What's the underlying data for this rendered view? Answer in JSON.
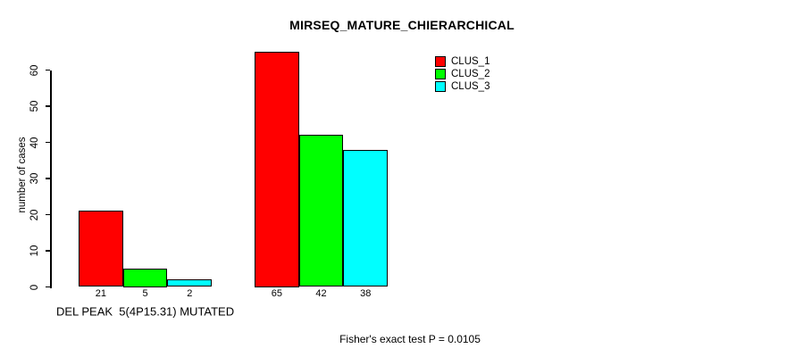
{
  "background_color": "#ffffff",
  "chart_data": {
    "type": "bar",
    "title": "MIRSEQ_MATURE_CHIERARCHICAL",
    "ylabel": "number of cases",
    "xlabel": "",
    "ylim": [
      0,
      65
    ],
    "yticks": [
      0,
      10,
      20,
      30,
      40,
      50,
      60
    ],
    "grid": false,
    "legend_position": "top-right",
    "bar_border_color": "#000000",
    "categories": [
      "DEL PEAK  5(4P15.31) MUTATED",
      ""
    ],
    "series": [
      {
        "name": "CLUS_1",
        "color": "#ff0000",
        "values": [
          21,
          65
        ]
      },
      {
        "name": "CLUS_2",
        "color": "#00ff00",
        "values": [
          5,
          42
        ]
      },
      {
        "name": "CLUS_3",
        "color": "#00ffff",
        "values": [
          2,
          38
        ]
      }
    ],
    "bar_value_labels": [
      [
        21,
        5,
        2
      ],
      [
        65,
        42,
        38
      ]
    ],
    "annotation": "Fisher's exact test P = 0.0105"
  }
}
